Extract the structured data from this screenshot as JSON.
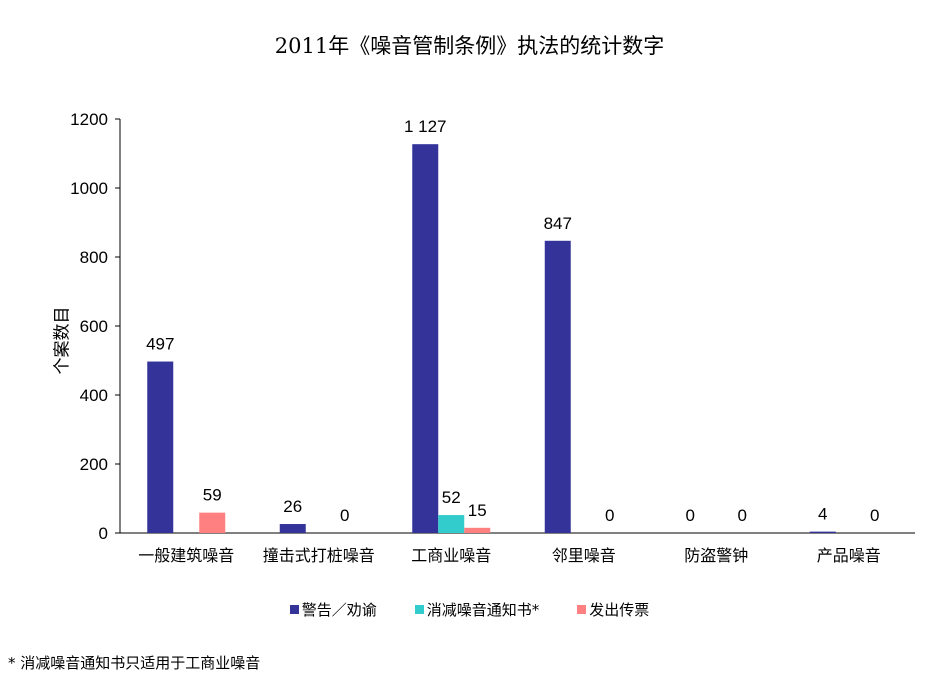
{
  "chart_data": {
    "type": "bar",
    "title": "2011年《噪音管制条例》执法的统计数字",
    "xlabel": "",
    "ylabel": "个案数目",
    "ylim": [
      0,
      1200
    ],
    "yticks": [
      0,
      200,
      400,
      600,
      800,
      1000,
      1200
    ],
    "categories": [
      "一般建筑噪音",
      "撞击式打桩噪音",
      "工商业噪音",
      "邻里噪音",
      "防盗警钟",
      "产品噪音"
    ],
    "series": [
      {
        "name": "警告／劝谕",
        "color": "#333399",
        "values": [
          497,
          26,
          1127,
          847,
          0,
          4
        ],
        "labels": [
          "497",
          "26",
          "1 127",
          "847",
          "0",
          "4"
        ]
      },
      {
        "name": "消减噪音通知书*",
        "color": "#33CCCC",
        "values": [
          null,
          null,
          52,
          null,
          null,
          null
        ],
        "labels": [
          null,
          null,
          "52",
          null,
          null,
          null
        ]
      },
      {
        "name": "发出传票",
        "color": "#FF8080",
        "values": [
          59,
          0,
          15,
          0,
          0,
          0
        ],
        "labels": [
          "59",
          "0",
          "15",
          "0",
          "0",
          "0"
        ]
      }
    ],
    "legend_position": "bottom",
    "grid": false
  },
  "footnote": "* 消减噪音通知书只适用于工商业噪音"
}
